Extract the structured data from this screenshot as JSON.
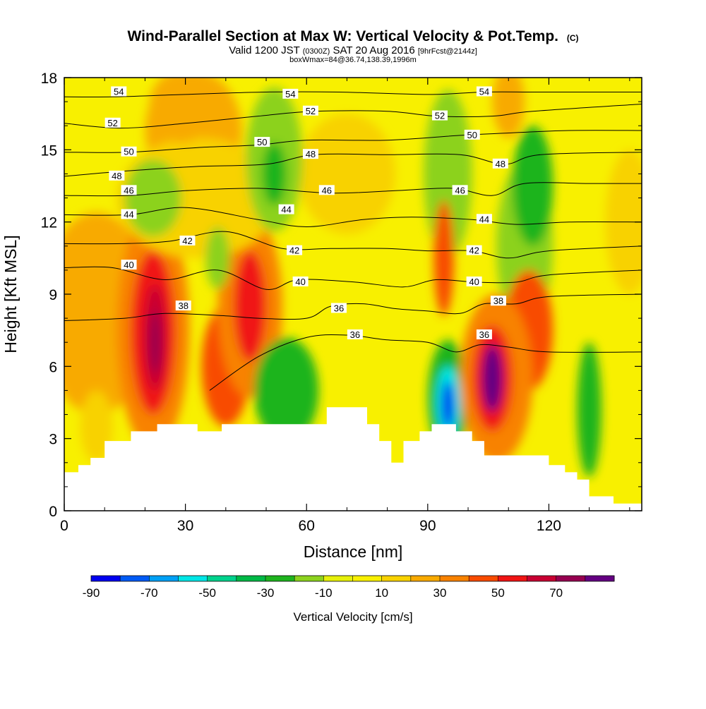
{
  "chart_data": {
    "type": "heatmap",
    "title": "Wind-Parallel Section at Max W: Vertical Velocity & Pot.Temp.",
    "title_mark": "(C)",
    "subtitle_a": "Valid 1200 JST ",
    "subtitle_b": "(0300Z)",
    "subtitle_c": " SAT 20 Aug 2016 ",
    "subtitle_d": "[9hrFcst@2144z]",
    "subtitle2": "boxWmax=84@36.74,138.39,1996m",
    "xlabel": "Distance [nm]",
    "ylabel": "Height [Kft MSL]",
    "xlim": [
      0,
      143
    ],
    "ylim": [
      0,
      18
    ],
    "x_ticks": [
      0,
      30,
      60,
      90,
      120
    ],
    "y_ticks": [
      0,
      3,
      6,
      9,
      12,
      15,
      18
    ],
    "grid": false,
    "colorbar": {
      "label": "Vertical Velocity [cm/s]",
      "ticks": [
        -90,
        -70,
        -50,
        -30,
        -10,
        10,
        30,
        50,
        70
      ],
      "bins": [
        {
          "from": -90,
          "to": -80,
          "color": "#0000f0"
        },
        {
          "from": -80,
          "to": -70,
          "color": "#005af5"
        },
        {
          "from": -70,
          "to": -60,
          "color": "#00a0f5"
        },
        {
          "from": -60,
          "to": -50,
          "color": "#00e6e6"
        },
        {
          "from": -50,
          "to": -40,
          "color": "#00d28c"
        },
        {
          "from": -40,
          "to": -30,
          "color": "#00b946"
        },
        {
          "from": -30,
          "to": -20,
          "color": "#1eb41e"
        },
        {
          "from": -20,
          "to": -10,
          "color": "#8cd21e"
        },
        {
          "from": -10,
          "to": 0,
          "color": "#e6f00a"
        },
        {
          "from": 0,
          "to": 10,
          "color": "#f8f000"
        },
        {
          "from": 10,
          "to": 20,
          "color": "#f8d200"
        },
        {
          "from": 20,
          "to": 30,
          "color": "#f8aa00"
        },
        {
          "from": 30,
          "to": 40,
          "color": "#f88200"
        },
        {
          "from": 40,
          "to": 50,
          "color": "#f84b00"
        },
        {
          "from": 50,
          "to": 60,
          "color": "#f01414"
        },
        {
          "from": 60,
          "to": 70,
          "color": "#c80032"
        },
        {
          "from": 70,
          "to": 80,
          "color": "#960050"
        },
        {
          "from": 80,
          "to": 90,
          "color": "#640082"
        }
      ]
    },
    "velocity_features": [
      {
        "x": 8,
        "y": 8.2,
        "rx": 14,
        "ry": 4.2,
        "w": 25
      },
      {
        "x": 32,
        "y": 15.8,
        "rx": 12,
        "ry": 2.5,
        "w": 22
      },
      {
        "x": 22,
        "y": 7.5,
        "rx": 9,
        "ry": 5.0,
        "w": 35
      },
      {
        "x": 22,
        "y": 7.4,
        "rx": 5.5,
        "ry": 3.4,
        "w": 50
      },
      {
        "x": 22.5,
        "y": 7.2,
        "rx": 2.8,
        "ry": 2.2,
        "w": 65
      },
      {
        "x": 22.5,
        "y": 7.0,
        "rx": 1.3,
        "ry": 1.3,
        "w": 75
      },
      {
        "x": 40,
        "y": 6.0,
        "rx": 6,
        "ry": 2.5,
        "w": 45
      },
      {
        "x": 46,
        "y": 8.5,
        "rx": 8,
        "ry": 3.8,
        "w": 35
      },
      {
        "x": 46,
        "y": 8.5,
        "rx": 4,
        "ry": 2.3,
        "w": 55
      },
      {
        "x": 33,
        "y": 13.0,
        "rx": 20,
        "ry": 2.5,
        "w": 15
      },
      {
        "x": 29,
        "y": 16.8,
        "rx": 8,
        "ry": 1.5,
        "w": 25
      },
      {
        "x": 70,
        "y": 14.0,
        "rx": 12,
        "ry": 2.5,
        "w": 15
      },
      {
        "x": 22,
        "y": 13.0,
        "rx": 7,
        "ry": 1.6,
        "w": -20
      },
      {
        "x": 38,
        "y": 10.5,
        "rx": 3,
        "ry": 1.3,
        "w": -15
      },
      {
        "x": 52,
        "y": 14.6,
        "rx": 7,
        "ry": 3.0,
        "w": -18
      },
      {
        "x": 52,
        "y": 14.0,
        "rx": 3,
        "ry": 1.3,
        "w": -25
      },
      {
        "x": 55,
        "y": 5.0,
        "rx": 8,
        "ry": 2.2,
        "w": -22
      },
      {
        "x": 54,
        "y": 4.6,
        "rx": 4,
        "ry": 1.2,
        "w": -30
      },
      {
        "x": 95,
        "y": 14.0,
        "rx": 6,
        "ry": 3.5,
        "w": -18
      },
      {
        "x": 94,
        "y": 10.5,
        "rx": 2.5,
        "ry": 2.4,
        "w": 45
      },
      {
        "x": 95,
        "y": 4.7,
        "rx": 5,
        "ry": 2.4,
        "w": -30
      },
      {
        "x": 95,
        "y": 4.5,
        "rx": 3,
        "ry": 1.5,
        "w": -60
      },
      {
        "x": 95,
        "y": 4.4,
        "rx": 1.5,
        "ry": 1.0,
        "w": -88
      },
      {
        "x": 114,
        "y": 11.0,
        "rx": 7,
        "ry": 3.5,
        "w": -15
      },
      {
        "x": 116,
        "y": 13.5,
        "rx": 5,
        "ry": 2.5,
        "w": -25
      },
      {
        "x": 115,
        "y": 7.5,
        "rx": 6,
        "ry": 2.5,
        "w": 45
      },
      {
        "x": 107,
        "y": 5.5,
        "rx": 9,
        "ry": 3.5,
        "w": 35
      },
      {
        "x": 106,
        "y": 5.5,
        "rx": 5,
        "ry": 2.2,
        "w": 55
      },
      {
        "x": 106,
        "y": 5.5,
        "rx": 2.5,
        "ry": 1.4,
        "w": 80
      },
      {
        "x": 130,
        "y": 4.2,
        "rx": 3,
        "ry": 2.8,
        "w": -25
      },
      {
        "x": 110,
        "y": 17.0,
        "rx": 4,
        "ry": 1.5,
        "w": 25
      },
      {
        "x": 140,
        "y": 12.0,
        "rx": 6,
        "ry": 3.0,
        "w": 15
      },
      {
        "x": 8,
        "y": 3.5,
        "rx": 4,
        "ry": 1.5,
        "w": 15
      }
    ],
    "theta_contours": [
      {
        "value": 36,
        "points": [
          [
            36,
            5.0
          ],
          [
            48,
            6.4
          ],
          [
            60,
            7.2
          ],
          [
            70,
            7.3
          ],
          [
            80,
            7.1
          ],
          [
            90,
            7.0
          ],
          [
            97,
            6.6
          ],
          [
            103,
            6.9
          ],
          [
            110,
            6.8
          ],
          [
            120,
            6.6
          ],
          [
            143,
            6.6
          ]
        ]
      },
      {
        "value": 38,
        "points": [
          [
            0,
            7.9
          ],
          [
            15,
            8.0
          ],
          [
            25,
            8.2
          ],
          [
            40,
            8.1
          ],
          [
            48,
            8.0
          ],
          [
            60,
            8.0
          ],
          [
            66,
            8.5
          ],
          [
            74,
            8.6
          ],
          [
            82,
            8.4
          ],
          [
            90,
            8.3
          ],
          [
            98,
            8.2
          ],
          [
            104,
            8.6
          ],
          [
            112,
            8.6
          ],
          [
            120,
            8.9
          ],
          [
            143,
            9.0
          ]
        ]
      },
      {
        "value": 40,
        "points": [
          [
            0,
            10.1
          ],
          [
            12,
            10.1
          ],
          [
            25,
            9.6
          ],
          [
            38,
            10.0
          ],
          [
            50,
            9.2
          ],
          [
            58,
            9.6
          ],
          [
            72,
            9.5
          ],
          [
            84,
            9.3
          ],
          [
            92,
            9.6
          ],
          [
            102,
            9.5
          ],
          [
            112,
            9.5
          ],
          [
            120,
            9.8
          ],
          [
            143,
            10.0
          ]
        ]
      },
      {
        "value": 42,
        "points": [
          [
            0,
            11.1
          ],
          [
            14,
            11.1
          ],
          [
            26,
            11.2
          ],
          [
            40,
            11.6
          ],
          [
            54,
            10.9
          ],
          [
            66,
            10.9
          ],
          [
            80,
            10.9
          ],
          [
            90,
            10.8
          ],
          [
            101,
            10.8
          ],
          [
            110,
            10.5
          ],
          [
            120,
            10.8
          ],
          [
            143,
            11.0
          ]
        ]
      },
      {
        "value": 44,
        "points": [
          [
            0,
            12.3
          ],
          [
            16,
            12.3
          ],
          [
            30,
            12.6
          ],
          [
            48,
            12.1
          ],
          [
            60,
            11.8
          ],
          [
            74,
            12.1
          ],
          [
            86,
            12.2
          ],
          [
            101,
            12.1
          ],
          [
            112,
            11.9
          ],
          [
            125,
            12.0
          ],
          [
            143,
            12.0
          ]
        ]
      },
      {
        "value": 46,
        "points": [
          [
            0,
            13.1
          ],
          [
            16,
            13.1
          ],
          [
            30,
            13.3
          ],
          [
            48,
            13.4
          ],
          [
            66,
            13.2
          ],
          [
            82,
            13.3
          ],
          [
            96,
            13.4
          ],
          [
            106,
            13.1
          ],
          [
            114,
            13.6
          ],
          [
            130,
            13.6
          ],
          [
            143,
            13.6
          ]
        ]
      },
      {
        "value": 48,
        "points": [
          [
            0,
            13.9
          ],
          [
            14,
            14.1
          ],
          [
            32,
            14.3
          ],
          [
            50,
            14.4
          ],
          [
            62,
            14.8
          ],
          [
            80,
            14.8
          ],
          [
            98,
            14.8
          ],
          [
            109,
            14.4
          ],
          [
            118,
            14.8
          ],
          [
            143,
            14.9
          ]
        ]
      },
      {
        "value": 50,
        "points": [
          [
            0,
            14.9
          ],
          [
            16,
            14.9
          ],
          [
            34,
            15.1
          ],
          [
            48,
            15.2
          ],
          [
            60,
            15.4
          ],
          [
            80,
            15.4
          ],
          [
            98,
            15.6
          ],
          [
            110,
            15.7
          ],
          [
            125,
            15.8
          ],
          [
            143,
            15.8
          ]
        ]
      },
      {
        "value": 52,
        "points": [
          [
            0,
            16.1
          ],
          [
            14,
            15.9
          ],
          [
            30,
            16.1
          ],
          [
            48,
            16.4
          ],
          [
            62,
            16.6
          ],
          [
            80,
            16.6
          ],
          [
            92,
            16.4
          ],
          [
            106,
            16.4
          ],
          [
            116,
            16.6
          ],
          [
            143,
            16.9
          ]
        ]
      },
      {
        "value": 54,
        "points": [
          [
            0,
            17.2
          ],
          [
            12,
            17.2
          ],
          [
            30,
            17.3
          ],
          [
            50,
            17.4
          ],
          [
            68,
            17.4
          ],
          [
            90,
            17.3
          ],
          [
            104,
            17.4
          ],
          [
            118,
            17.4
          ],
          [
            143,
            17.4
          ]
        ]
      }
    ],
    "contour_labels": [
      {
        "value": 36,
        "x": 72,
        "y": 7.3
      },
      {
        "value": 36,
        "x": 104,
        "y": 7.3
      },
      {
        "value": 36,
        "x": 68,
        "y": 8.4
      },
      {
        "value": 38,
        "x": 29.5,
        "y": 8.5
      },
      {
        "value": 38,
        "x": 107.5,
        "y": 8.7
      },
      {
        "value": 40,
        "x": 16,
        "y": 10.2
      },
      {
        "value": 40,
        "x": 58.5,
        "y": 9.5
      },
      {
        "value": 40,
        "x": 101.5,
        "y": 9.5
      },
      {
        "value": 42,
        "x": 30.5,
        "y": 11.2
      },
      {
        "value": 42,
        "x": 57,
        "y": 10.8
      },
      {
        "value": 42,
        "x": 101.5,
        "y": 10.8
      },
      {
        "value": 44,
        "x": 16,
        "y": 12.3
      },
      {
        "value": 44,
        "x": 55,
        "y": 12.5
      },
      {
        "value": 44,
        "x": 104,
        "y": 12.1
      },
      {
        "value": 46,
        "x": 16,
        "y": 13.3
      },
      {
        "value": 46,
        "x": 65,
        "y": 13.3
      },
      {
        "value": 46,
        "x": 98,
        "y": 13.3
      },
      {
        "value": 48,
        "x": 13,
        "y": 13.9
      },
      {
        "value": 48,
        "x": 61,
        "y": 14.8
      },
      {
        "value": 48,
        "x": 108,
        "y": 14.4
      },
      {
        "value": 50,
        "x": 16,
        "y": 14.9
      },
      {
        "value": 50,
        "x": 49,
        "y": 15.3
      },
      {
        "value": 50,
        "x": 101,
        "y": 15.6
      },
      {
        "value": 52,
        "x": 12,
        "y": 16.1
      },
      {
        "value": 52,
        "x": 61,
        "y": 16.6
      },
      {
        "value": 52,
        "x": 93,
        "y": 16.4
      },
      {
        "value": 54,
        "x": 13.5,
        "y": 17.4
      },
      {
        "value": 54,
        "x": 56,
        "y": 17.3
      },
      {
        "value": 54,
        "x": 104,
        "y": 17.4
      }
    ],
    "terrain": [
      [
        0,
        1.6
      ],
      [
        3.5,
        1.6
      ],
      [
        3.5,
        1.9
      ],
      [
        6.5,
        1.9
      ],
      [
        6.5,
        2.2
      ],
      [
        10,
        2.2
      ],
      [
        10,
        2.9
      ],
      [
        16.5,
        2.9
      ],
      [
        16.5,
        3.3
      ],
      [
        23,
        3.3
      ],
      [
        23,
        3.6
      ],
      [
        33,
        3.6
      ],
      [
        33,
        3.3
      ],
      [
        39,
        3.3
      ],
      [
        39,
        3.6
      ],
      [
        65,
        3.6
      ],
      [
        65,
        4.3
      ],
      [
        75,
        4.3
      ],
      [
        75,
        3.6
      ],
      [
        78,
        3.6
      ],
      [
        78,
        2.9
      ],
      [
        81,
        2.9
      ],
      [
        81,
        2.0
      ],
      [
        84,
        2.0
      ],
      [
        84,
        2.9
      ],
      [
        88,
        2.9
      ],
      [
        88,
        3.3
      ],
      [
        91,
        3.3
      ],
      [
        91,
        3.6
      ],
      [
        97,
        3.6
      ],
      [
        97,
        3.3
      ],
      [
        101,
        3.3
      ],
      [
        101,
        2.9
      ],
      [
        104,
        2.9
      ],
      [
        104,
        2.3
      ],
      [
        120,
        2.3
      ],
      [
        120,
        1.9
      ],
      [
        124,
        1.9
      ],
      [
        124,
        1.6
      ],
      [
        127,
        1.6
      ],
      [
        127,
        1.3
      ],
      [
        130,
        1.3
      ],
      [
        130,
        0.6
      ],
      [
        136,
        0.6
      ],
      [
        136,
        0.3
      ],
      [
        143,
        0.3
      ]
    ]
  }
}
